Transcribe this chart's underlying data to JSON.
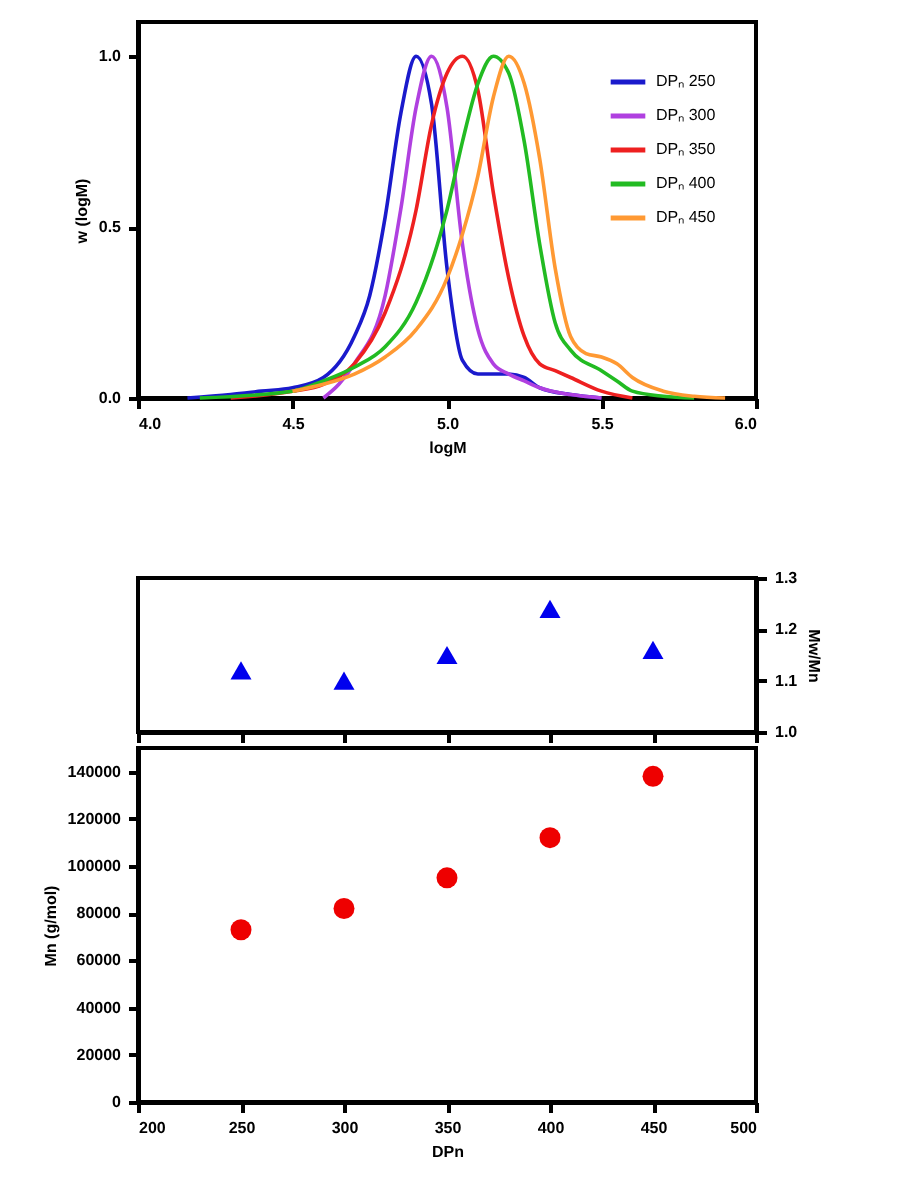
{
  "chart_data": [
    {
      "type": "line",
      "xlabel": "logM",
      "ylabel": "w (logM)",
      "xlim": [
        4.0,
        6.0
      ],
      "ylim": [
        0,
        1.1
      ],
      "xticks": [
        {
          "value": 4,
          "label": "4.0"
        },
        {
          "value": 4.5,
          "label": "4.5"
        },
        {
          "value": 5,
          "label": "5.0"
        },
        {
          "value": 5.5,
          "label": "5.5"
        },
        {
          "value": 6,
          "label": "6.0"
        }
      ],
      "yticks": [
        {
          "value": 0,
          "label": "0.0"
        },
        {
          "value": 0.5,
          "label": "0.5"
        },
        {
          "value": 1,
          "label": "1.0"
        }
      ],
      "grid": false,
      "legend": "top right",
      "marker": "none",
      "line_style": "solid",
      "series": [
        {
          "name": "DPₙ 250",
          "color": "#1a1acc",
          "x": [
            4.16,
            4.3,
            4.4,
            4.5,
            4.6,
            4.7,
            4.75,
            4.8,
            4.85,
            4.9,
            4.95,
            5.0,
            5.05,
            5.1,
            5.2,
            5.25,
            5.3,
            5.4,
            5.5
          ],
          "values": [
            0,
            0.01,
            0.02,
            0.03,
            0.06,
            0.18,
            0.3,
            0.53,
            0.83,
            1.0,
            0.86,
            0.38,
            0.11,
            0.07,
            0.07,
            0.06,
            0.03,
            0.01,
            0
          ]
        },
        {
          "name": "DPₙ 300",
          "color": "#b040e0",
          "x": [
            4.6,
            4.65,
            4.7,
            4.8,
            4.85,
            4.9,
            4.95,
            5.0,
            5.05,
            5.1,
            5.15,
            5.2,
            5.25,
            5.3,
            5.4,
            5.5
          ],
          "values": [
            0,
            0.04,
            0.1,
            0.3,
            0.55,
            0.85,
            1.0,
            0.85,
            0.45,
            0.2,
            0.1,
            0.07,
            0.05,
            0.03,
            0.01,
            0
          ]
        },
        {
          "name": "DPₙ 350",
          "color": "#ee2020",
          "x": [
            4.3,
            4.5,
            4.6,
            4.7,
            4.8,
            4.9,
            4.95,
            5.0,
            5.05,
            5.1,
            5.15,
            5.2,
            5.25,
            5.3,
            5.35,
            5.4,
            5.5,
            5.6
          ],
          "values": [
            0,
            0.02,
            0.04,
            0.1,
            0.25,
            0.55,
            0.8,
            0.95,
            1.0,
            0.9,
            0.6,
            0.35,
            0.18,
            0.1,
            0.08,
            0.06,
            0.02,
            0
          ]
        },
        {
          "name": "DPₙ 400",
          "color": "#22bb22",
          "x": [
            4.2,
            4.5,
            4.6,
            4.7,
            4.8,
            4.9,
            5.0,
            5.05,
            5.1,
            5.15,
            5.2,
            5.25,
            5.3,
            5.35,
            5.4,
            5.5,
            5.55,
            5.6,
            5.7,
            5.8
          ],
          "values": [
            0,
            0.02,
            0.05,
            0.09,
            0.15,
            0.28,
            0.55,
            0.75,
            0.92,
            1.0,
            0.95,
            0.75,
            0.45,
            0.22,
            0.14,
            0.08,
            0.05,
            0.02,
            0.005,
            0
          ]
        },
        {
          "name": "DPₙ 450",
          "color": "#ff9933",
          "x": [
            4.5,
            4.6,
            4.7,
            4.8,
            4.9,
            5.0,
            5.05,
            5.1,
            5.15,
            5.2,
            5.25,
            5.3,
            5.35,
            5.4,
            5.45,
            5.5,
            5.55,
            5.6,
            5.7,
            5.8,
            5.9
          ],
          "values": [
            0.02,
            0.04,
            0.07,
            0.12,
            0.2,
            0.35,
            0.48,
            0.65,
            0.88,
            1.0,
            0.92,
            0.7,
            0.38,
            0.18,
            0.13,
            0.12,
            0.1,
            0.06,
            0.02,
            0.005,
            0
          ]
        }
      ]
    },
    {
      "type": "scatter",
      "ylabel": "Mw/Mn",
      "xlim": [
        200,
        500
      ],
      "ylim": [
        1.0,
        1.3
      ],
      "xticks": [
        200,
        250,
        300,
        350,
        400,
        450,
        500
      ],
      "yticks": [
        {
          "value": 1.0,
          "label": "1.0"
        },
        {
          "value": 1.1,
          "label": "1.1"
        },
        {
          "value": 1.2,
          "label": "1.2"
        },
        {
          "value": 1.3,
          "label": "1.3"
        }
      ],
      "tick_labels": "y",
      "grid": false,
      "marker": "triangle",
      "series": [
        {
          "color": "#0000ee",
          "x": [
            250,
            300,
            350,
            400,
            450
          ],
          "values": [
            1.12,
            1.1,
            1.15,
            1.24,
            1.16
          ]
        }
      ]
    },
    {
      "type": "scatter",
      "xlabel": "DPn",
      "ylabel": "Mn (g/mol)",
      "xlim": [
        200,
        500
      ],
      "ylim": [
        0,
        150000
      ],
      "xticks": [
        200,
        250,
        300,
        350,
        400,
        450,
        500
      ],
      "yticks": [
        0,
        20000,
        40000,
        60000,
        80000,
        100000,
        120000,
        140000
      ],
      "grid": false,
      "marker": "circle",
      "series": [
        {
          "color": "#ee0000",
          "x": [
            250,
            300,
            350,
            400,
            450
          ],
          "values": [
            73000,
            82000,
            95000,
            112000,
            138000
          ]
        }
      ]
    }
  ]
}
